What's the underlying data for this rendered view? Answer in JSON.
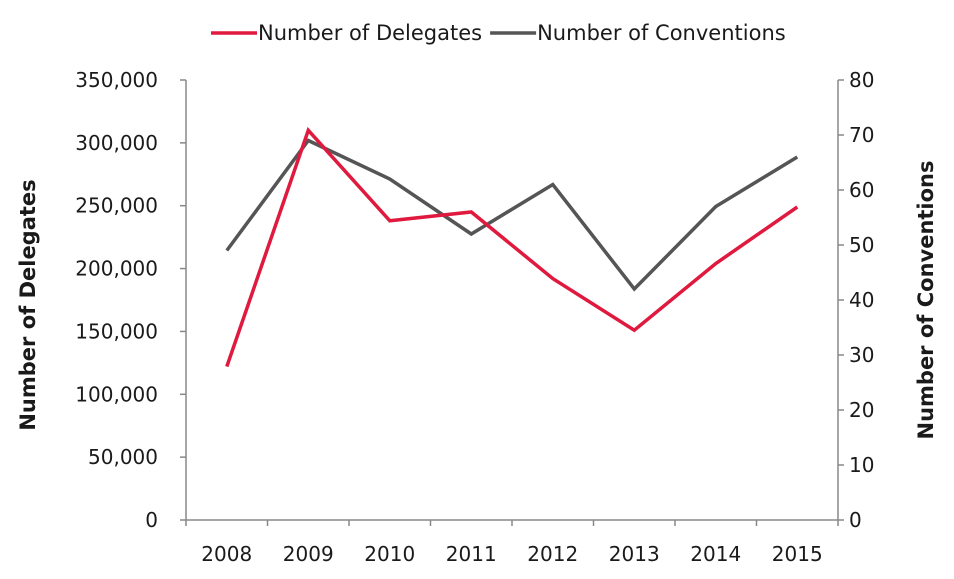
{
  "chart_data": {
    "type": "line",
    "categories": [
      "2008",
      "2009",
      "2010",
      "2011",
      "2012",
      "2013",
      "2014",
      "2015"
    ],
    "series": [
      {
        "name": "Number of Delegates",
        "axis": "left",
        "color": "#e0193f",
        "values": [
          122000,
          310000,
          238000,
          245000,
          192000,
          151000,
          204000,
          249000
        ]
      },
      {
        "name": "Number of Conventions",
        "axis": "right",
        "color": "#555555",
        "values": [
          49,
          69,
          62,
          52,
          61,
          42,
          57,
          66
        ]
      }
    ],
    "ylabel": "Number of Delegates",
    "y2label": "Number of Conventions",
    "ylim": [
      0,
      350000
    ],
    "y2lim": [
      0,
      80
    ],
    "yticks": [
      "0",
      "50,000",
      "100,000",
      "150,000",
      "200,000",
      "250,000",
      "300,000",
      "350,000"
    ],
    "y2ticks": [
      "0",
      "10",
      "20",
      "30",
      "40",
      "50",
      "60",
      "70",
      "80"
    ],
    "grid": false,
    "legend": "top"
  }
}
